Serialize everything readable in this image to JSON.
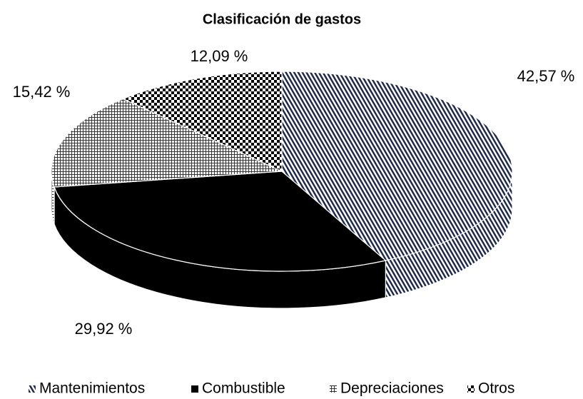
{
  "chart_data": {
    "type": "pie",
    "title": "Clasificación de gastos",
    "categories": [
      "Mantenimientos",
      "Combustible",
      "Depreciaciones",
      "Otros"
    ],
    "values": [
      42.57,
      29.92,
      15.42,
      12.09
    ],
    "value_labels": [
      "42,57 %",
      "29,92 %",
      "15,42 %",
      "12,09 %"
    ],
    "colors": [
      "#1f2a4a",
      "#000000",
      "#333333",
      "#000000"
    ],
    "legend": "bottom"
  }
}
